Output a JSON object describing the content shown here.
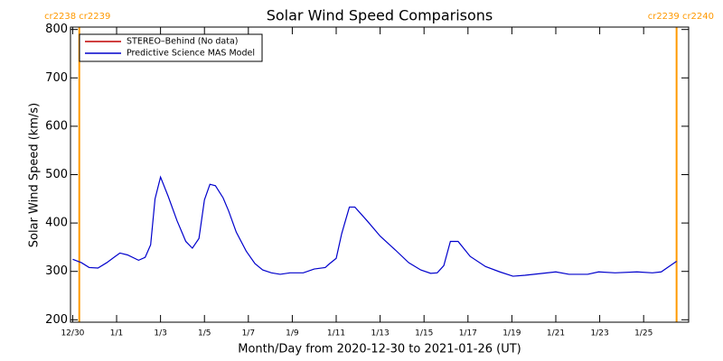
{
  "chart_data": {
    "type": "line",
    "title": "Solar Wind Speed Comparisons",
    "xlabel": "Month/Day from 2020-12-30 to 2021-01-26 (UT)",
    "ylabel": "Solar Wind Speed (km/s)",
    "x": [
      0,
      0.4,
      0.75,
      1.15,
      1.55,
      2.15,
      2.5,
      3.0,
      3.3,
      3.55,
      3.75,
      4.0,
      4.35,
      4.75,
      5.15,
      5.45,
      5.75,
      6.0,
      6.25,
      6.5,
      6.85,
      7.1,
      7.45,
      7.9,
      8.3,
      8.65,
      9.05,
      9.45,
      9.9,
      10.5,
      11.0,
      11.5,
      11.7,
      12.0,
      12.25,
      12.6,
      12.85,
      13.4,
      14.0,
      14.7,
      15.3,
      15.85,
      16.3,
      16.6,
      16.9,
      17.2,
      17.55,
      18.1,
      18.8,
      19.45,
      20.05,
      20.6,
      21.4,
      22.0,
      22.6,
      23.45,
      23.95,
      24.7,
      25.7,
      26.4,
      26.8,
      27.15,
      27.5
    ],
    "series": [
      {
        "name": "STEREO–Behind (No data)",
        "color": "#c00000"
      },
      {
        "name": "Predictive Science MAS Model",
        "color": "#0000cc",
        "values": [
          325,
          318,
          308,
          307,
          318,
          338,
          334,
          323,
          329,
          355,
          450,
          495,
          455,
          405,
          362,
          348,
          368,
          448,
          480,
          477,
          452,
          425,
          381,
          342,
          316,
          303,
          297,
          294,
          297,
          297,
          305,
          308,
          316,
          327,
          378,
          433,
          433,
          405,
          373,
          344,
          318,
          303,
          296,
          297,
          312,
          362,
          362,
          331,
          310,
          299,
          290,
          292,
          296,
          299,
          294,
          294,
          299,
          297,
          299,
          297,
          299,
          310,
          321
        ]
      }
    ],
    "xlim": [
      -0.1,
      28.05
    ],
    "xticks": [
      {
        "value": 0,
        "label": "12/30"
      },
      {
        "value": 2,
        "label": "1/1"
      },
      {
        "value": 4,
        "label": "1/3"
      },
      {
        "value": 6,
        "label": "1/5"
      },
      {
        "value": 8,
        "label": "1/7"
      },
      {
        "value": 10,
        "label": "1/9"
      },
      {
        "value": 12,
        "label": "1/11"
      },
      {
        "value": 14,
        "label": "1/13"
      },
      {
        "value": 16,
        "label": "1/15"
      },
      {
        "value": 18,
        "label": "1/17"
      },
      {
        "value": 20,
        "label": "1/19"
      },
      {
        "value": 22,
        "label": "1/21"
      },
      {
        "value": 24,
        "label": "1/23"
      },
      {
        "value": 26,
        "label": "1/25"
      }
    ],
    "ylim": [
      195,
      805
    ],
    "yticks": [
      200,
      300,
      400,
      500,
      600,
      700,
      800
    ],
    "boundaries": [
      {
        "x": 0.3,
        "label": "cr2238 cr2239"
      },
      {
        "x": 27.5,
        "label": "cr2239 cr2240"
      }
    ],
    "boundary_color": "#ff9900",
    "legend": "upper left"
  }
}
